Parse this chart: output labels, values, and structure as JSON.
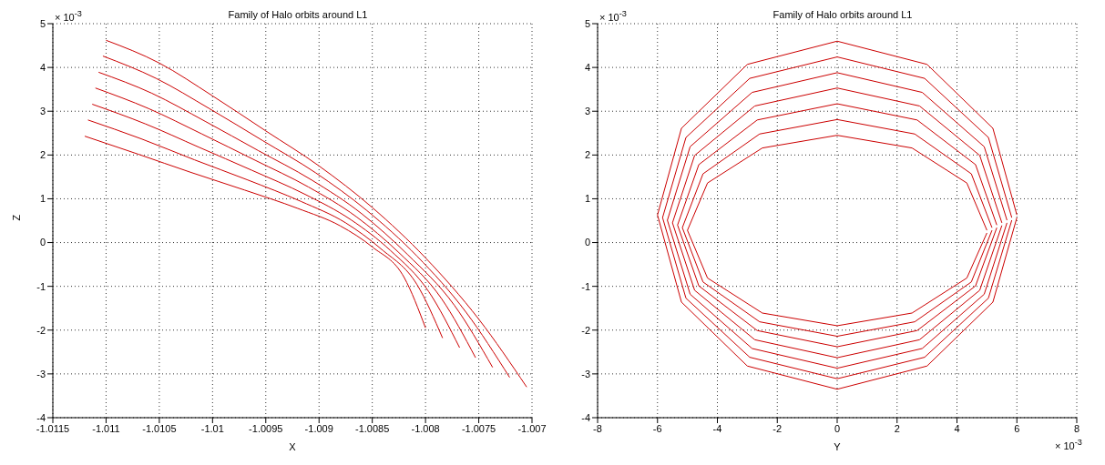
{
  "chart_data": [
    {
      "type": "line",
      "title": "Family of Halo orbits around L1",
      "xlabel": "X",
      "ylabel": "Z",
      "annotations": [
        "× 10$^{-3}$"
      ],
      "grid": true,
      "marker": "none",
      "line_style": "solid",
      "xlim": [
        -1.0115,
        -1.007
      ],
      "xticks": [
        -1.0115,
        -1.011,
        -1.0105,
        -1.01,
        -1.0095,
        -1.009,
        -1.0085,
        -1.008,
        -1.0075,
        -1.007
      ],
      "ylim": [
        -4,
        5
      ],
      "yticks": [
        -4,
        -3,
        -2,
        -1,
        0,
        1,
        2,
        3,
        4,
        5
      ],
      "series": [
        {
          "color": "#cc0000",
          "x": [
            -1.0112,
            -1.0107,
            -1.0102,
            -1.0097,
            -1.0092,
            -1.0088,
            -1.0085,
            -1.0082,
            -1.008
          ],
          "values": [
            2.43,
            2.02,
            1.6,
            1.2,
            0.78,
            0.38,
            -0.1,
            -0.8,
            -1.95
          ]
        },
        {
          "color": "#cc0000",
          "x": [
            -1.01117,
            -1.01067,
            -1.01017,
            -1.00967,
            -1.00917,
            -1.00875,
            -1.00842,
            -1.00808,
            -1.00784
          ],
          "values": [
            2.8,
            2.37,
            1.89,
            1.43,
            0.94,
            0.45,
            -0.14,
            -0.96,
            -2.18
          ]
        },
        {
          "color": "#cc0000",
          "x": [
            -1.01113,
            -1.01063,
            -1.01013,
            -1.00963,
            -1.00913,
            -1.0087,
            -1.00833,
            -1.00797,
            -1.00768
          ],
          "values": [
            3.16,
            2.71,
            2.18,
            1.65,
            1.1,
            0.52,
            -0.18,
            -1.12,
            -2.4
          ]
        },
        {
          "color": "#cc0000",
          "x": [
            -1.0111,
            -1.0106,
            -1.0101,
            -1.0096,
            -1.0091,
            -1.00865,
            -1.00825,
            -1.00785,
            -1.00753
          ],
          "values": [
            3.53,
            3.06,
            2.48,
            1.88,
            1.27,
            0.59,
            -0.23,
            -1.28,
            -2.63
          ]
        },
        {
          "color": "#cc0000",
          "x": [
            -1.01107,
            -1.01057,
            -1.01007,
            -1.00957,
            -1.00907,
            -1.0086,
            -1.00817,
            -1.00773,
            -1.00737
          ],
          "values": [
            3.89,
            3.41,
            2.77,
            2.1,
            1.43,
            0.66,
            -0.27,
            -1.43,
            -2.85
          ]
        },
        {
          "color": "#cc0000",
          "x": [
            -1.01103,
            -1.01053,
            -1.01003,
            -1.00953,
            -1.00903,
            -1.00855,
            -1.00808,
            -1.00762,
            -1.00721
          ],
          "values": [
            4.26,
            3.75,
            3.06,
            2.33,
            1.59,
            0.73,
            -0.31,
            -1.59,
            -3.08
          ]
        },
        {
          "color": "#cc0000",
          "x": [
            -1.011,
            -1.0105,
            -1.01,
            -1.0095,
            -1.009,
            -1.0085,
            -1.008,
            -1.0075,
            -1.00705
          ],
          "values": [
            4.62,
            4.1,
            3.35,
            2.55,
            1.75,
            0.8,
            -0.35,
            -1.75,
            -3.3
          ]
        }
      ]
    },
    {
      "type": "line",
      "title": "Family of Halo orbits around L1",
      "xlabel": "Y",
      "annotations": [
        "× 10$^{-3}$",
        "× 10$^{-3}$"
      ],
      "grid": true,
      "marker": "none",
      "line_style": "solid",
      "xlim": [
        -8,
        8
      ],
      "xticks": [
        -8,
        -6,
        -4,
        -2,
        0,
        2,
        4,
        6,
        8
      ],
      "ylim": [
        -4,
        5
      ],
      "yticks": [
        -4,
        -3,
        -2,
        -1,
        0,
        1,
        2,
        3,
        4,
        5
      ],
      "series": [
        {
          "color": "#cc0000",
          "x": [
            5,
            4.33,
            2.5,
            0,
            -2.5,
            -4.33,
            -5,
            -4.33,
            -2.5,
            0,
            2.5,
            4.33,
            5
          ],
          "values": [
            0.28,
            1.36,
            2.16,
            2.45,
            2.16,
            1.36,
            0.28,
            -0.81,
            -1.61,
            -1.9,
            -1.61,
            -0.81,
            0.22
          ]
        },
        {
          "color": "#cc0000",
          "x": [
            5.17,
            4.48,
            2.59,
            0,
            -2.59,
            -4.48,
            -5.17,
            -4.48,
            -2.59,
            0,
            2.59,
            4.48,
            5.17
          ],
          "values": [
            0.34,
            1.57,
            2.48,
            2.81,
            2.48,
            1.57,
            0.34,
            -0.9,
            -1.81,
            -2.14,
            -1.81,
            -0.9,
            0.28
          ]
        },
        {
          "color": "#cc0000",
          "x": [
            5.33,
            4.62,
            2.67,
            0,
            -2.67,
            -4.62,
            -5.33,
            -4.62,
            -2.67,
            0,
            2.67,
            4.62,
            5.33
          ],
          "values": [
            0.4,
            1.78,
            2.8,
            3.17,
            2.8,
            1.78,
            0.4,
            -0.99,
            -2.01,
            -2.38,
            -2.01,
            -0.99,
            0.34
          ]
        },
        {
          "color": "#cc0000",
          "x": [
            5.5,
            4.76,
            2.75,
            0,
            -2.75,
            -4.76,
            -5.5,
            -4.76,
            -2.75,
            0,
            2.75,
            4.76,
            5.5
          ],
          "values": [
            0.45,
            1.99,
            3.12,
            3.53,
            3.12,
            1.99,
            0.45,
            -1.09,
            -2.22,
            -2.63,
            -2.22,
            -1.09,
            0.39
          ]
        },
        {
          "color": "#cc0000",
          "x": [
            5.67,
            4.91,
            2.84,
            0,
            -2.84,
            -4.91,
            -5.67,
            -4.91,
            -2.84,
            0,
            2.84,
            4.91,
            5.67
          ],
          "values": [
            0.51,
            2.19,
            3.43,
            3.88,
            3.43,
            2.19,
            0.51,
            -1.18,
            -2.42,
            -2.87,
            -2.42,
            -1.18,
            0.45
          ]
        },
        {
          "color": "#cc0000",
          "x": [
            5.83,
            5.05,
            2.92,
            0,
            -2.92,
            -5.05,
            -5.83,
            -5.05,
            -2.92,
            0,
            2.92,
            5.05,
            5.83
          ],
          "values": [
            0.57,
            2.4,
            3.75,
            4.24,
            3.75,
            2.4,
            0.57,
            -1.27,
            -2.62,
            -3.11,
            -2.62,
            -1.27,
            0.51
          ]
        },
        {
          "color": "#cc0000",
          "x": [
            6,
            5.2,
            3,
            0,
            -3,
            -5.2,
            -6,
            -5.2,
            -3,
            0,
            3,
            5.2,
            6
          ],
          "values": [
            0.63,
            2.61,
            4.07,
            4.6,
            4.07,
            2.61,
            0.63,
            -1.36,
            -2.82,
            -3.35,
            -2.82,
            -1.36,
            0.57
          ]
        }
      ]
    }
  ]
}
